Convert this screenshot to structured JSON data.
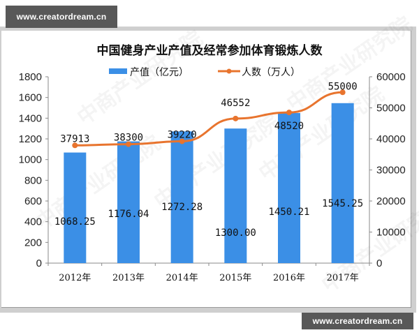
{
  "watermarks": {
    "top": "www.creatordream.cn",
    "bottom": "www.creatordream.cn",
    "background": "中商产业研究院"
  },
  "colors": {
    "bar": "#3b8fe6",
    "line": "#e8742e",
    "axis": "#8a8a8a",
    "frame": "#cfcfcf",
    "watermark_box": "#585858"
  },
  "chart_data": {
    "type": "bar",
    "title": "中国健身产业产值及经常参加体育锻炼人数",
    "categories": [
      "2012年",
      "2013年",
      "2014年",
      "2015年",
      "2016年",
      "2017年"
    ],
    "series": [
      {
        "name": "产值（亿元）",
        "type": "bar",
        "axis": "left",
        "values": [
          1068.25,
          1176.04,
          1272.28,
          1300.0,
          1450.21,
          1545.25
        ],
        "labels": [
          "1068.25",
          "1176.04",
          "1272.28",
          "1300.00",
          "1450.21",
          "1545.25"
        ]
      },
      {
        "name": "人数（万人）",
        "type": "line",
        "axis": "right",
        "values": [
          37913,
          38300,
          39220,
          46552,
          48520,
          55000
        ],
        "labels": [
          "37913",
          "38300",
          "39220",
          "46552",
          "48520",
          "55000"
        ]
      }
    ],
    "left_axis": {
      "ylim": [
        0,
        1800
      ],
      "ticks": [
        "0",
        "200",
        "400",
        "600",
        "800",
        "1000",
        "1200",
        "1400",
        "1600",
        "1800"
      ]
    },
    "right_axis": {
      "ylim": [
        0,
        60000
      ],
      "ticks": [
        "0",
        "10000",
        "20000",
        "30000",
        "40000",
        "50000",
        "60000"
      ]
    },
    "xlabel": "",
    "ylabel": "",
    "legend_position": "top",
    "grid": false
  }
}
